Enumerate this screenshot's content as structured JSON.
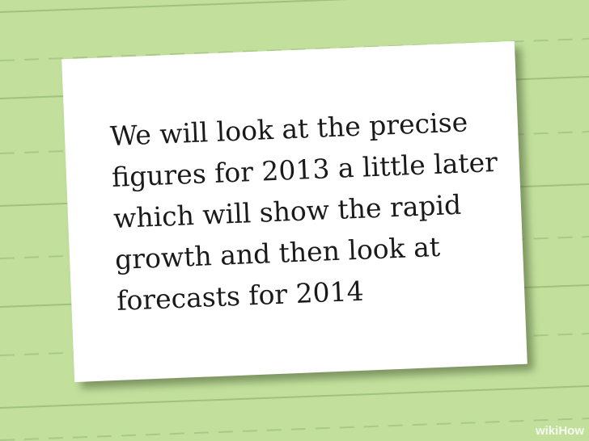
{
  "card": {
    "lines": [
      "We will look at the precise",
      "figures for 2013 a little later",
      "which will show the rapid",
      "growth and then look at",
      "forecasts for 2014"
    ]
  },
  "watermark": {
    "prefix": "wiki",
    "suffix": "How"
  },
  "colors": {
    "background": "#c2e09c",
    "rule_solid": "#9fc27c",
    "rule_dashed": "#a9c989",
    "card": "#ffffff",
    "text": "#1a1a1a"
  }
}
